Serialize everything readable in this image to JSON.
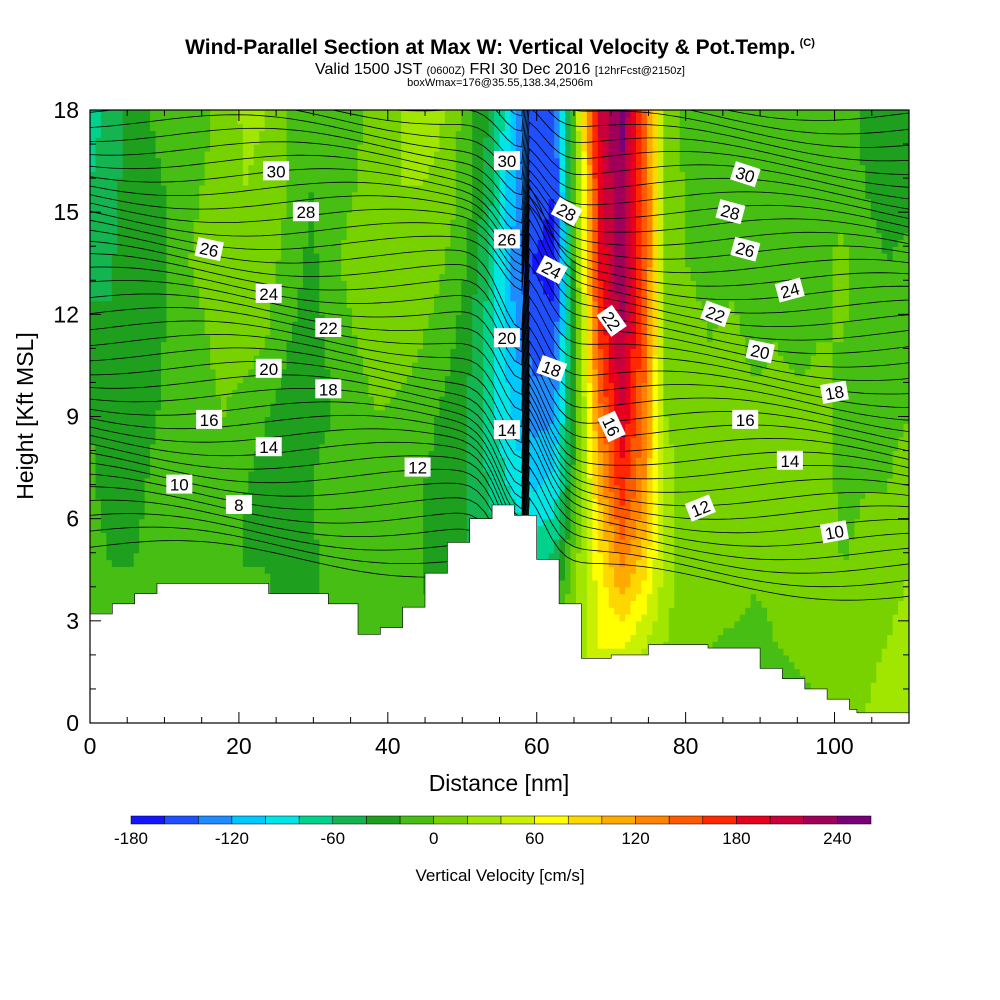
{
  "header": {
    "title": "Wind-Parallel Section at Max W: Vertical Velocity & Pot.Temp.",
    "title_mark": "(C)",
    "valid_prefix": "Valid 1500 JST",
    "valid_utc": "(0600Z)",
    "valid_date": "FRI 30 Dec 2016",
    "forecast": "[12hrFcst@2150z]",
    "box_info": "boxWmax=176@35.55,138.34,2506m"
  },
  "chart_data": {
    "type": "heatmap",
    "xlabel": "Distance [nm]",
    "ylabel": "Height [Kft MSL]",
    "xlim": [
      0,
      110
    ],
    "ylim": [
      0,
      18
    ],
    "x_ticks": [
      0,
      20,
      40,
      60,
      80,
      100
    ],
    "y_ticks": [
      0,
      3,
      6,
      9,
      12,
      15,
      18
    ],
    "colorbar": {
      "label": "Vertical Velocity [cm/s]",
      "range": [
        -180,
        260
      ],
      "step": 20,
      "tick_values": [
        -180,
        -120,
        -60,
        0,
        60,
        120,
        180,
        240
      ],
      "tick_labels": [
        "-180",
        "-120",
        "-60",
        "0",
        "60",
        "120",
        "180",
        "240"
      ],
      "colors": [
        "#1414ff",
        "#1e50ff",
        "#1e8cff",
        "#00c8ff",
        "#00e6e6",
        "#00d28c",
        "#14b450",
        "#1ea01e",
        "#46be14",
        "#78d200",
        "#a0e600",
        "#c8f000",
        "#ffff00",
        "#ffd700",
        "#ffaa00",
        "#ff8200",
        "#ff5a00",
        "#ff2800",
        "#e6001e",
        "#c8003c",
        "#a0005a",
        "#780078"
      ]
    },
    "terrain": [
      [
        0,
        3.2
      ],
      [
        3,
        3.2
      ],
      [
        3,
        3.5
      ],
      [
        6,
        3.5
      ],
      [
        6,
        3.8
      ],
      [
        9,
        3.8
      ],
      [
        9,
        4.1
      ],
      [
        24,
        4.1
      ],
      [
        24,
        3.8
      ],
      [
        32,
        3.8
      ],
      [
        32,
        3.5
      ],
      [
        36,
        3.5
      ],
      [
        36,
        2.6
      ],
      [
        39,
        2.6
      ],
      [
        39,
        2.8
      ],
      [
        42,
        2.8
      ],
      [
        42,
        3.4
      ],
      [
        45,
        3.4
      ],
      [
        45,
        4.4
      ],
      [
        48,
        4.4
      ],
      [
        48,
        5.3
      ],
      [
        51,
        5.3
      ],
      [
        51,
        6.0
      ],
      [
        54,
        6.0
      ],
      [
        54,
        6.4
      ],
      [
        57,
        6.4
      ],
      [
        57,
        6.1
      ],
      [
        60,
        6.1
      ],
      [
        60,
        4.8
      ],
      [
        63,
        4.8
      ],
      [
        63,
        3.5
      ],
      [
        66,
        3.5
      ],
      [
        66,
        1.9
      ],
      [
        70,
        1.9
      ],
      [
        70,
        2.0
      ],
      [
        75,
        2.0
      ],
      [
        75,
        2.3
      ],
      [
        83,
        2.3
      ],
      [
        83,
        2.2
      ],
      [
        90,
        2.2
      ],
      [
        90,
        1.6
      ],
      [
        93,
        1.6
      ],
      [
        93,
        1.3
      ],
      [
        96,
        1.3
      ],
      [
        96,
        1.0
      ],
      [
        99,
        1.0
      ],
      [
        99,
        0.7
      ],
      [
        102,
        0.7
      ],
      [
        102,
        0.4
      ],
      [
        103,
        0.4
      ],
      [
        103,
        0.3
      ],
      [
        110,
        0.3
      ]
    ],
    "w_field": [
      [
        -70,
        -50,
        -30,
        -15,
        -10,
        -5,
        5,
        25,
        20,
        0,
        -15,
        -10,
        -5,
        10,
        20,
        30,
        20,
        -10,
        -40,
        -100,
        -160,
        -150,
        30,
        200,
        250,
        150,
        20,
        -10,
        -20,
        -20,
        -10,
        -15,
        -20,
        -15,
        -10,
        -25,
        -35,
        -30
      ],
      [
        -60,
        -45,
        -30,
        -25,
        -10,
        0,
        5,
        20,
        15,
        0,
        -20,
        -10,
        0,
        10,
        20,
        20,
        15,
        -10,
        -50,
        -110,
        -150,
        -160,
        20,
        190,
        240,
        160,
        20,
        -5,
        -10,
        -10,
        -15,
        -10,
        -15,
        -10,
        -5,
        -20,
        -30,
        -25
      ],
      [
        -50,
        -40,
        -35,
        -30,
        -5,
        5,
        10,
        15,
        10,
        -10,
        -25,
        -5,
        10,
        15,
        20,
        15,
        0,
        -20,
        -60,
        -120,
        -160,
        -170,
        10,
        180,
        240,
        160,
        20,
        0,
        -5,
        -5,
        -10,
        -5,
        -10,
        -5,
        5,
        -10,
        -20,
        -15
      ],
      [
        -30,
        -40,
        -35,
        -25,
        -10,
        -5,
        10,
        10,
        0,
        -20,
        -30,
        -15,
        0,
        10,
        10,
        0,
        -10,
        -30,
        -70,
        -110,
        -150,
        -150,
        0,
        160,
        220,
        150,
        20,
        5,
        0,
        5,
        -5,
        0,
        -5,
        0,
        0,
        -5,
        -10,
        -5
      ],
      [
        -20,
        -35,
        -30,
        -20,
        -15,
        -10,
        0,
        -10,
        -20,
        -30,
        -25,
        -20,
        -10,
        0,
        -5,
        -10,
        -25,
        -40,
        -70,
        -100,
        -130,
        -120,
        -10,
        130,
        200,
        140,
        20,
        10,
        10,
        10,
        5,
        5,
        5,
        5,
        -5,
        -5,
        -5,
        0
      ],
      [
        -15,
        -30,
        -25,
        -15,
        -20,
        -10,
        -10,
        -20,
        -30,
        -35,
        -20,
        -10,
        -5,
        -10,
        -15,
        -20,
        -30,
        -40,
        -60,
        -80,
        -100,
        -90,
        0,
        100,
        170,
        120,
        30,
        10,
        15,
        15,
        10,
        10,
        10,
        10,
        -5,
        0,
        0,
        10
      ],
      [
        -10,
        -20,
        -20,
        -10,
        -15,
        -10,
        -10,
        -20,
        -20,
        -30,
        -25,
        -10,
        -10,
        -10,
        -15,
        -20,
        -30,
        -40,
        -50,
        -60,
        -60,
        -50,
        20,
        70,
        120,
        90,
        30,
        10,
        10,
        15,
        5,
        5,
        10,
        10,
        0,
        5,
        10,
        20
      ],
      [
        0,
        -10,
        -15,
        -10,
        -10,
        -5,
        -5,
        -10,
        -15,
        -20,
        -20,
        -15,
        -10,
        -10,
        -10,
        -15,
        -20,
        -30,
        -30,
        -30,
        -20,
        0,
        30,
        60,
        60,
        40,
        20,
        5,
        0,
        -5,
        -10,
        0,
        5,
        5,
        5,
        15,
        20,
        30
      ],
      [
        0,
        0,
        -10,
        -20,
        -20,
        -15,
        -10,
        -10,
        -10,
        -15,
        -20,
        -15,
        -15,
        -20,
        -20,
        -20,
        -15,
        -10,
        -10,
        0,
        0,
        0,
        10,
        30,
        30,
        20,
        10,
        0,
        -10,
        -20,
        -30,
        -20,
        -10,
        0,
        10,
        20,
        30,
        40
      ]
    ],
    "theta_labels": [
      {
        "text": "30",
        "x": 12.5,
        "y": 16.2,
        "angle": 0
      },
      {
        "text": "28",
        "x": 14.5,
        "y": 15.0,
        "angle": 0
      },
      {
        "text": "26",
        "x": 8,
        "y": 13.9,
        "angle": 12
      },
      {
        "text": "24",
        "x": 12,
        "y": 12.6,
        "angle": 0
      },
      {
        "text": "22",
        "x": 16,
        "y": 11.6,
        "angle": 0
      },
      {
        "text": "20",
        "x": 12,
        "y": 10.4,
        "angle": 0
      },
      {
        "text": "18",
        "x": 16,
        "y": 9.8,
        "angle": 0
      },
      {
        "text": "16",
        "x": 8,
        "y": 8.9,
        "angle": 0
      },
      {
        "text": "14",
        "x": 12,
        "y": 8.1,
        "angle": 0
      },
      {
        "text": "10",
        "x": 6,
        "y": 7.0,
        "angle": 0
      },
      {
        "text": "8",
        "x": 10,
        "y": 6.4,
        "angle": 0
      },
      {
        "text": "30",
        "x": 28,
        "y": 16.5,
        "angle": 0
      },
      {
        "text": "26",
        "x": 28,
        "y": 14.2,
        "angle": 0
      },
      {
        "text": "20",
        "x": 28,
        "y": 11.3,
        "angle": 0
      },
      {
        "text": "14",
        "x": 28,
        "y": 8.6,
        "angle": 0
      },
      {
        "text": "12",
        "x": 22,
        "y": 7.5,
        "angle": 0
      },
      {
        "text": "28",
        "x": 32,
        "y": 15.0,
        "angle": 28
      },
      {
        "text": "24",
        "x": 31,
        "y": 13.3,
        "angle": 28
      },
      {
        "text": "22",
        "x": 35,
        "y": 11.8,
        "angle": 55
      },
      {
        "text": "18",
        "x": 31,
        "y": 10.4,
        "angle": 20
      },
      {
        "text": "16",
        "x": 35,
        "y": 8.7,
        "angle": 65
      },
      {
        "text": "12",
        "x": 41,
        "y": 6.3,
        "angle": -22
      },
      {
        "text": "30",
        "x": 44,
        "y": 16.1,
        "angle": 18
      },
      {
        "text": "28",
        "x": 43,
        "y": 15.0,
        "angle": 15
      },
      {
        "text": "26",
        "x": 44,
        "y": 13.9,
        "angle": 15
      },
      {
        "text": "24",
        "x": 47,
        "y": 12.7,
        "angle": -15
      },
      {
        "text": "22",
        "x": 42,
        "y": 12.0,
        "angle": 20
      },
      {
        "text": "20",
        "x": 45,
        "y": 10.9,
        "angle": 12
      },
      {
        "text": "18",
        "x": 50,
        "y": 9.7,
        "angle": -10
      },
      {
        "text": "16",
        "x": 44,
        "y": 8.9,
        "angle": 0
      },
      {
        "text": "14",
        "x": 47,
        "y": 7.7,
        "angle": 0
      },
      {
        "text": "10",
        "x": 50,
        "y": 5.6,
        "angle": -10
      }
    ]
  }
}
